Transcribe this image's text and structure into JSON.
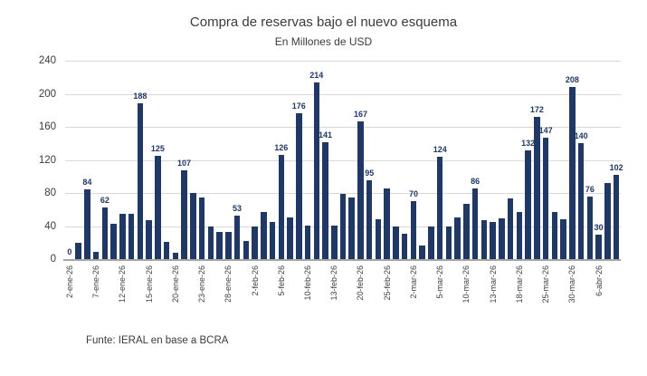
{
  "header": {
    "title": "Compra de reservas bajo el nuevo esquema",
    "subtitle": "En Millones de USD"
  },
  "footer": {
    "source_note": "Funte: IERAL en base a BCRA"
  },
  "colors": {
    "bar": "#1f3864",
    "data_label": "#1f3864",
    "gridline": "#d9d9d9",
    "axis_line": "#a6a6a6",
    "text": "#3b3b3b"
  },
  "chart_data": {
    "type": "bar",
    "title": "Compra de reservas bajo el nuevo esquema",
    "subtitle": "En Millones de USD",
    "ylabel": "",
    "xlabel": "",
    "ylim": [
      0,
      240
    ],
    "y_ticks": [
      0,
      40,
      80,
      120,
      160,
      200,
      240
    ],
    "grid": true,
    "x_label_every_n_bars": 3,
    "x_tick_labels": [
      "2-ene-26",
      "7-ene-26",
      "12-ene-26",
      "15-ene-26",
      "20-ene-26",
      "23-ene-26",
      "28-ene-26",
      "2-feb-26",
      "5-feb-26",
      "10-feb-26",
      "13-feb-26",
      "20-feb-26",
      "25-feb-26",
      "2-mar-26",
      "5-mar-26",
      "10-mar-26",
      "13-mar-26",
      "18-mar-26",
      "25-mar-26",
      "30-mar-26",
      "6-abr-26"
    ],
    "values": [
      0,
      20,
      84,
      9,
      62,
      43,
      55,
      55,
      188,
      47,
      125,
      21,
      8,
      107,
      80,
      75,
      40,
      33,
      33,
      53,
      22,
      40,
      57,
      45,
      126,
      50,
      176,
      41,
      214,
      141,
      41,
      79,
      75,
      167,
      95,
      48,
      85,
      40,
      31,
      70,
      16,
      40,
      124,
      40,
      50,
      67,
      86,
      47,
      45,
      49,
      73,
      57,
      132,
      172,
      147,
      57,
      48,
      208,
      140,
      76,
      30,
      92,
      102
    ],
    "data_labels": {
      "0": "0",
      "2": "84",
      "4": "62",
      "8": "188",
      "10": "125",
      "13": "107",
      "19": "53",
      "24": "126",
      "26": "176",
      "28": "214",
      "29": "141",
      "33": "167",
      "34": "95",
      "39": "70",
      "42": "124",
      "46": "86",
      "52": "132",
      "53": "172",
      "54": "147",
      "57": "208",
      "58": "140",
      "59": "76",
      "60": "30",
      "62": "102"
    }
  }
}
